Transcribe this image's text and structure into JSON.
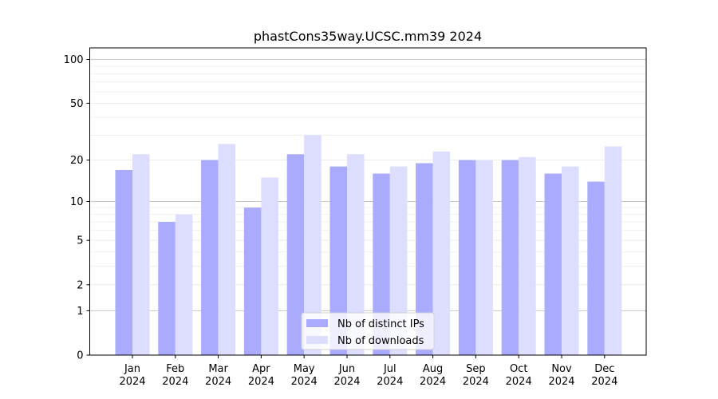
{
  "chart_data": {
    "type": "bar",
    "title": "phastCons35way.UCSC.mm39 2024",
    "xlabel": "",
    "ylabel": "",
    "y_scale": "log1p",
    "ylim": [
      0,
      120
    ],
    "y_ticks": [
      0,
      1,
      2,
      5,
      10,
      20,
      50,
      100
    ],
    "categories": [
      [
        "Jan",
        "2024"
      ],
      [
        "Feb",
        "2024"
      ],
      [
        "Mar",
        "2024"
      ],
      [
        "Apr",
        "2024"
      ],
      [
        "May",
        "2024"
      ],
      [
        "Jun",
        "2024"
      ],
      [
        "Jul",
        "2024"
      ],
      [
        "Aug",
        "2024"
      ],
      [
        "Sep",
        "2024"
      ],
      [
        "Oct",
        "2024"
      ],
      [
        "Nov",
        "2024"
      ],
      [
        "Dec",
        "2024"
      ]
    ],
    "series": [
      {
        "name": "Nb of distinct IPs",
        "color": "#aaaaff",
        "values": [
          17,
          7,
          20,
          9,
          22,
          18,
          16,
          19,
          20,
          20,
          16,
          14
        ]
      },
      {
        "name": "Nb of downloads",
        "color": "#ddddff",
        "values": [
          22,
          8,
          26,
          15,
          30,
          22,
          18,
          23,
          20,
          21,
          18,
          25
        ]
      }
    ],
    "grid": true,
    "legend_position": "bottom-center"
  }
}
